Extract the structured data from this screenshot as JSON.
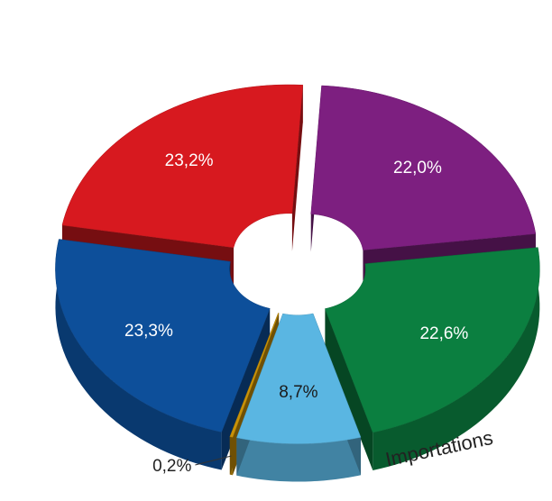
{
  "chart_data": {
    "type": "pie",
    "values": [
      23.2,
      22.0,
      22.6,
      8.7,
      0.2,
      23.3
    ],
    "value_labels": [
      "23,2%",
      "22,0%",
      "22,6%",
      "8,7%",
      "0,2%",
      "23,3%"
    ],
    "colors": [
      "#d7191f",
      "#7d1f80",
      "#0b7f40",
      "#5ab6e2",
      "#c99208",
      "#0d4f9a"
    ],
    "annotation": "Importations"
  }
}
